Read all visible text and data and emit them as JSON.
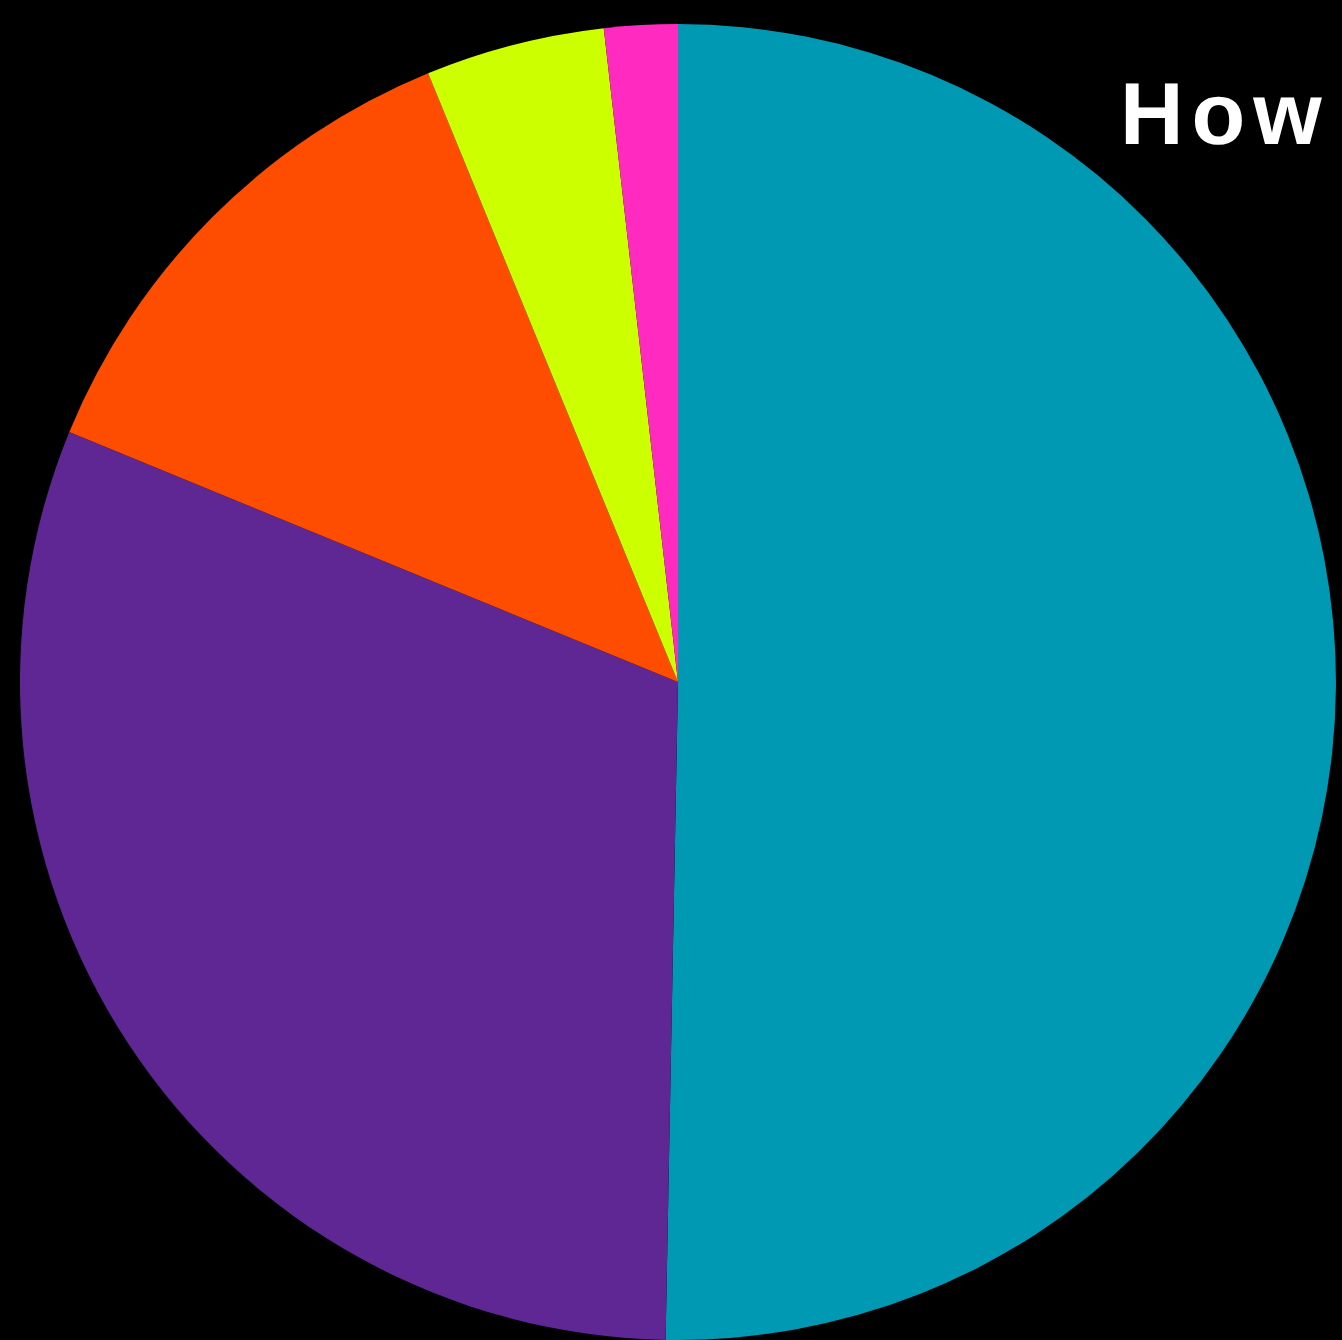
{
  "chart_data": {
    "type": "pie",
    "title": "How",
    "categories": [
      null,
      null,
      null,
      null,
      null
    ],
    "values": [
      50.3,
      30.9,
      12.6,
      4.4,
      1.8
    ],
    "colors": [
      "#0099b3",
      "#5f2794",
      "#ff4d00",
      "#ccff00",
      "#ff2abf"
    ]
  }
}
